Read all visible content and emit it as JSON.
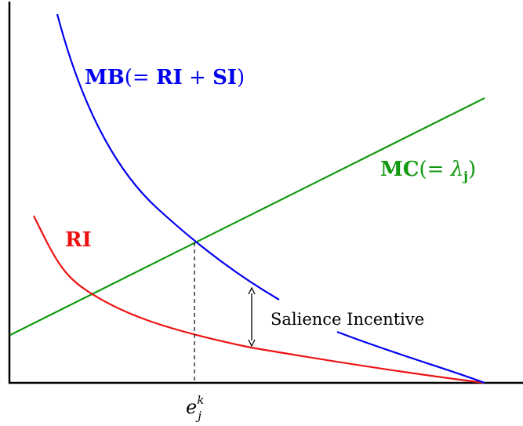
{
  "labels": {
    "mb_main": "MB",
    "mb_paren": "(= ",
    "mb_ri": "RI",
    "mb_plus": " + ",
    "mb_si": "SI",
    "mb_close": ")",
    "mc_main": "MC",
    "mc_paren": "(= ",
    "mc_lambda": "λ",
    "mc_sub": "j",
    "mc_close": ")",
    "ri": "RI",
    "salience": "Salience Incentive",
    "x_tick_base": "e",
    "x_tick_sub": "j",
    "x_tick_sup": "k"
  },
  "colors": {
    "mb": "#0000ee",
    "mc": "#119911",
    "ri": "#ee1111",
    "axis": "#000000",
    "annotation": "#000000"
  }
}
